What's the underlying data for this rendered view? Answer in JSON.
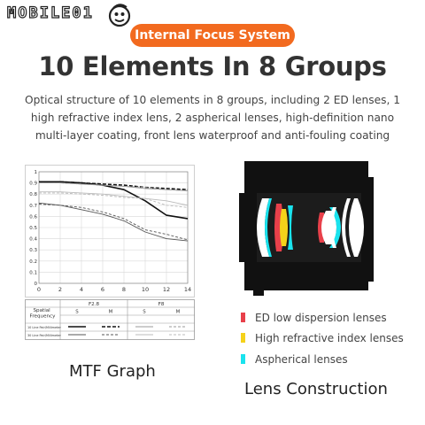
{
  "brand": {
    "logo_text": "MOBILE01"
  },
  "badge": {
    "label": "Internal Focus System"
  },
  "headline": "10 Elements In 8 Groups",
  "description": "Optical structure of 10 elements in 8 groups, including 2 ED lenses, 1 high refractive index lens, 2 aspherical lenses, high-definition nano multi-layer coating, front lens waterproof and anti-fouling coating",
  "mtf": {
    "caption": "MTF Graph",
    "table": {
      "row_header": "Spatial Frequency",
      "groups": [
        "F2.8",
        "F8"
      ],
      "sub_headers": [
        "S",
        "M",
        "S",
        "M"
      ],
      "rows": [
        "10 Line Pair/Millimeter",
        "30 Line Pair/Millimeter"
      ]
    }
  },
  "chart_data": {
    "type": "line",
    "title": "",
    "xlabel": "",
    "ylabel": "",
    "xlim": [
      0,
      14
    ],
    "ylim": [
      0,
      1
    ],
    "x_ticks": [
      0,
      2,
      4,
      6,
      8,
      10,
      12,
      14
    ],
    "y_ticks": [
      0,
      0.1,
      0.2,
      0.3,
      0.4,
      0.5,
      0.6,
      0.7,
      0.8,
      0.9,
      1
    ],
    "y_tick_labels": [
      "0",
      "0.1",
      "0.2",
      "0.3",
      "0.4",
      "0.5",
      "0.6",
      "0.7",
      "0.8",
      "0.9",
      "1"
    ],
    "grid": true,
    "x": [
      0,
      2,
      4,
      6,
      8,
      10,
      12,
      14
    ],
    "series": [
      {
        "key": "f28_10_s",
        "style": "solid-thick",
        "color": "#111111",
        "values": [
          0.91,
          0.91,
          0.9,
          0.88,
          0.84,
          0.74,
          0.61,
          0.58
        ]
      },
      {
        "key": "f28_10_m",
        "style": "dashed-thick",
        "color": "#111111",
        "values": [
          0.91,
          0.91,
          0.9,
          0.89,
          0.88,
          0.86,
          0.85,
          0.84
        ]
      },
      {
        "key": "f8_10_s",
        "style": "solid-thin",
        "color": "#999999",
        "values": [
          0.9,
          0.9,
          0.89,
          0.88,
          0.87,
          0.85,
          0.84,
          0.83
        ]
      },
      {
        "key": "f8_10_m",
        "style": "dashed-thin",
        "color": "#999999",
        "values": [
          0.9,
          0.9,
          0.89,
          0.88,
          0.87,
          0.86,
          0.84,
          0.83
        ]
      },
      {
        "key": "f28_30_s",
        "style": "solid-thin",
        "color": "#555555",
        "values": [
          0.72,
          0.7,
          0.66,
          0.62,
          0.56,
          0.46,
          0.4,
          0.38
        ]
      },
      {
        "key": "f28_30_m",
        "style": "dashed-thin",
        "color": "#555555",
        "values": [
          0.71,
          0.7,
          0.68,
          0.64,
          0.58,
          0.48,
          0.44,
          0.39
        ]
      },
      {
        "key": "f8_30_s",
        "style": "solid-thin",
        "color": "#bbbbbb",
        "values": [
          0.82,
          0.82,
          0.81,
          0.8,
          0.78,
          0.76,
          0.74,
          0.7
        ]
      },
      {
        "key": "f8_30_m",
        "style": "dashed-thin",
        "color": "#bbbbbb",
        "values": [
          0.81,
          0.81,
          0.8,
          0.79,
          0.77,
          0.76,
          0.7,
          0.68
        ]
      }
    ]
  },
  "lens_construction": {
    "caption": "Lens Construction",
    "legend": [
      {
        "label": "ED low dispersion lenses",
        "color": "#e8404a"
      },
      {
        "label": "High refractive index lenses",
        "color": "#f5d21a"
      },
      {
        "label": "Aspherical lenses",
        "color": "#19e3ee"
      }
    ]
  }
}
